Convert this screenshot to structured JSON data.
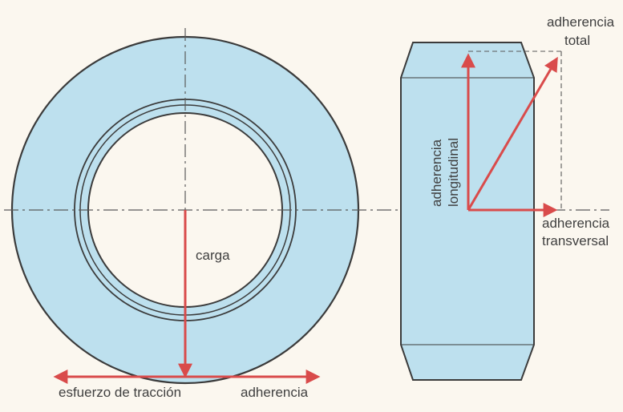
{
  "labels": {
    "load": "carga",
    "traction": "esfuerzo de tracción",
    "adhesion": "adherencia",
    "total_line1": "adherencia",
    "total_line2": "total",
    "longitudinal_line1": "adherencia",
    "longitudinal_line2": "longitudinal",
    "transversal_line1": "adherencia",
    "transversal_line2": "transversal"
  },
  "colors": {
    "background": "#fbf7ef",
    "tire_fill": "#bde0ee",
    "outline": "#3b3b3b",
    "arrow": "#d94b4b",
    "center_line": "#5a5a5a"
  }
}
